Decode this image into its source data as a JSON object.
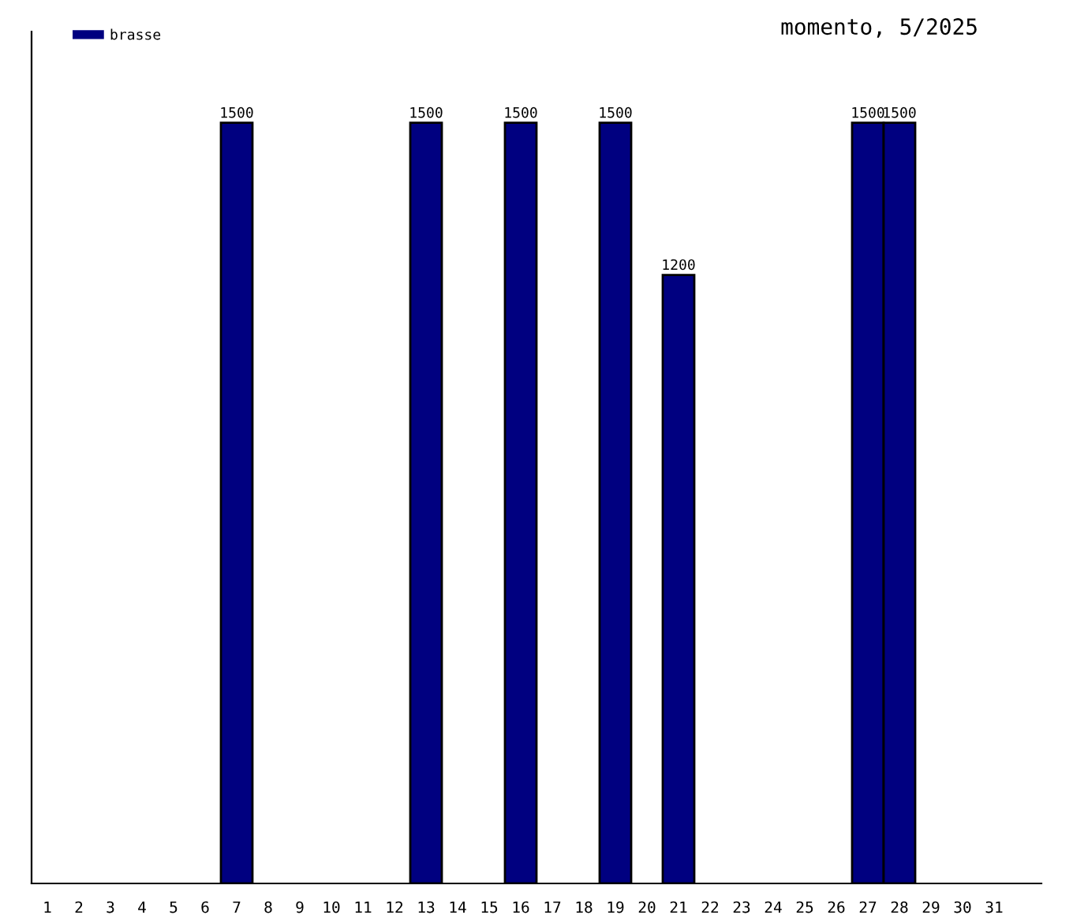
{
  "chart_data": {
    "type": "bar",
    "title": "momento, 5/2025",
    "categories": [
      "1",
      "2",
      "3",
      "4",
      "5",
      "6",
      "7",
      "8",
      "9",
      "10",
      "11",
      "12",
      "13",
      "14",
      "15",
      "16",
      "17",
      "18",
      "19",
      "20",
      "21",
      "22",
      "23",
      "24",
      "25",
      "26",
      "27",
      "28",
      "29",
      "30",
      "31"
    ],
    "series": [
      {
        "name": "brasse",
        "color": "#000080",
        "values": [
          null,
          null,
          null,
          null,
          null,
          null,
          1500,
          null,
          null,
          null,
          null,
          null,
          1500,
          null,
          null,
          1500,
          null,
          null,
          1500,
          null,
          1200,
          null,
          null,
          null,
          null,
          null,
          1500,
          1500,
          null,
          null,
          null
        ]
      }
    ],
    "ylim": [
      0,
      1680
    ],
    "data_labels": true,
    "legend": "top left",
    "grid": false
  }
}
